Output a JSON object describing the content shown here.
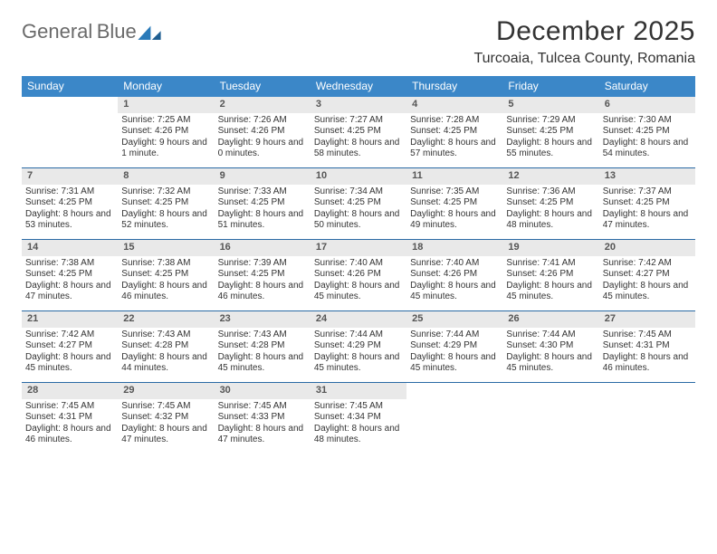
{
  "brand": {
    "word1": "General",
    "word2": "Blue"
  },
  "header": {
    "title": "December 2025",
    "location": "Turcoaia, Tulcea County, Romania"
  },
  "colors": {
    "headerBar": "#3b87c8",
    "dayBar": "#e9e9e9",
    "rule": "#2a6aa5",
    "text": "#333333",
    "logoGray": "#6a6a6a",
    "logoBlue": "#2a7ab9"
  },
  "dow": [
    "Sunday",
    "Monday",
    "Tuesday",
    "Wednesday",
    "Thursday",
    "Friday",
    "Saturday"
  ],
  "weeks": [
    [
      null,
      {
        "n": "1",
        "sr": "7:25 AM",
        "ss": "4:26 PM",
        "dl": "9 hours and 1 minute."
      },
      {
        "n": "2",
        "sr": "7:26 AM",
        "ss": "4:26 PM",
        "dl": "9 hours and 0 minutes."
      },
      {
        "n": "3",
        "sr": "7:27 AM",
        "ss": "4:25 PM",
        "dl": "8 hours and 58 minutes."
      },
      {
        "n": "4",
        "sr": "7:28 AM",
        "ss": "4:25 PM",
        "dl": "8 hours and 57 minutes."
      },
      {
        "n": "5",
        "sr": "7:29 AM",
        "ss": "4:25 PM",
        "dl": "8 hours and 55 minutes."
      },
      {
        "n": "6",
        "sr": "7:30 AM",
        "ss": "4:25 PM",
        "dl": "8 hours and 54 minutes."
      }
    ],
    [
      {
        "n": "7",
        "sr": "7:31 AM",
        "ss": "4:25 PM",
        "dl": "8 hours and 53 minutes."
      },
      {
        "n": "8",
        "sr": "7:32 AM",
        "ss": "4:25 PM",
        "dl": "8 hours and 52 minutes."
      },
      {
        "n": "9",
        "sr": "7:33 AM",
        "ss": "4:25 PM",
        "dl": "8 hours and 51 minutes."
      },
      {
        "n": "10",
        "sr": "7:34 AM",
        "ss": "4:25 PM",
        "dl": "8 hours and 50 minutes."
      },
      {
        "n": "11",
        "sr": "7:35 AM",
        "ss": "4:25 PM",
        "dl": "8 hours and 49 minutes."
      },
      {
        "n": "12",
        "sr": "7:36 AM",
        "ss": "4:25 PM",
        "dl": "8 hours and 48 minutes."
      },
      {
        "n": "13",
        "sr": "7:37 AM",
        "ss": "4:25 PM",
        "dl": "8 hours and 47 minutes."
      }
    ],
    [
      {
        "n": "14",
        "sr": "7:38 AM",
        "ss": "4:25 PM",
        "dl": "8 hours and 47 minutes."
      },
      {
        "n": "15",
        "sr": "7:38 AM",
        "ss": "4:25 PM",
        "dl": "8 hours and 46 minutes."
      },
      {
        "n": "16",
        "sr": "7:39 AM",
        "ss": "4:25 PM",
        "dl": "8 hours and 46 minutes."
      },
      {
        "n": "17",
        "sr": "7:40 AM",
        "ss": "4:26 PM",
        "dl": "8 hours and 45 minutes."
      },
      {
        "n": "18",
        "sr": "7:40 AM",
        "ss": "4:26 PM",
        "dl": "8 hours and 45 minutes."
      },
      {
        "n": "19",
        "sr": "7:41 AM",
        "ss": "4:26 PM",
        "dl": "8 hours and 45 minutes."
      },
      {
        "n": "20",
        "sr": "7:42 AM",
        "ss": "4:27 PM",
        "dl": "8 hours and 45 minutes."
      }
    ],
    [
      {
        "n": "21",
        "sr": "7:42 AM",
        "ss": "4:27 PM",
        "dl": "8 hours and 45 minutes."
      },
      {
        "n": "22",
        "sr": "7:43 AM",
        "ss": "4:28 PM",
        "dl": "8 hours and 44 minutes."
      },
      {
        "n": "23",
        "sr": "7:43 AM",
        "ss": "4:28 PM",
        "dl": "8 hours and 45 minutes."
      },
      {
        "n": "24",
        "sr": "7:44 AM",
        "ss": "4:29 PM",
        "dl": "8 hours and 45 minutes."
      },
      {
        "n": "25",
        "sr": "7:44 AM",
        "ss": "4:29 PM",
        "dl": "8 hours and 45 minutes."
      },
      {
        "n": "26",
        "sr": "7:44 AM",
        "ss": "4:30 PM",
        "dl": "8 hours and 45 minutes."
      },
      {
        "n": "27",
        "sr": "7:45 AM",
        "ss": "4:31 PM",
        "dl": "8 hours and 46 minutes."
      }
    ],
    [
      {
        "n": "28",
        "sr": "7:45 AM",
        "ss": "4:31 PM",
        "dl": "8 hours and 46 minutes."
      },
      {
        "n": "29",
        "sr": "7:45 AM",
        "ss": "4:32 PM",
        "dl": "8 hours and 47 minutes."
      },
      {
        "n": "30",
        "sr": "7:45 AM",
        "ss": "4:33 PM",
        "dl": "8 hours and 47 minutes."
      },
      {
        "n": "31",
        "sr": "7:45 AM",
        "ss": "4:34 PM",
        "dl": "8 hours and 48 minutes."
      },
      null,
      null,
      null
    ]
  ],
  "labels": {
    "sunrise": "Sunrise:",
    "sunset": "Sunset:",
    "daylight": "Daylight:"
  }
}
